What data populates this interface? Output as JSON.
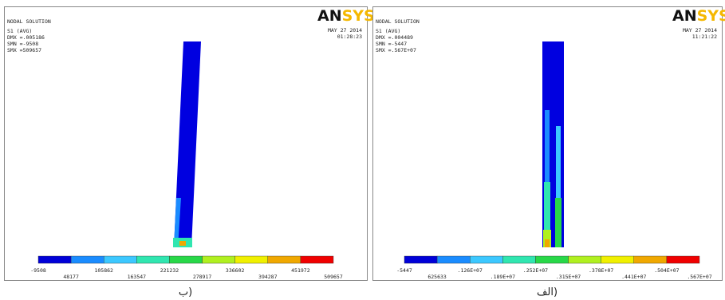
{
  "panels": [
    {
      "logo": "ANSYS",
      "title": "NODAL SOLUTION",
      "result": "S1      (AVG)",
      "dmx": "DMX =.005186",
      "smn": "SMN =-9508",
      "smx": "SMX =509657",
      "date": "MAY 27 2014",
      "time": "01:28:23",
      "legend": [
        "-9508",
        "48177",
        "105862",
        "163547",
        "221232",
        "278917",
        "336602",
        "394287",
        "451972",
        "509657"
      ],
      "caption": "ب)"
    },
    {
      "logo": "ANSYS",
      "title": "NODAL SOLUTION",
      "result": "S1      (AVG)",
      "dmx": "DMX =.004489",
      "smn": "SMN =-5447",
      "smx": "SMX =.567E+07",
      "date": "MAY 27 2014",
      "time": "11:21:22",
      "legend": [
        "-5447",
        "625633",
        ".126E+07",
        ".189E+07",
        ".252E+07",
        ".315E+07",
        ".378E+07",
        ".441E+07",
        ".504E+07",
        ".567E+07"
      ],
      "caption": "الف)"
    }
  ]
}
